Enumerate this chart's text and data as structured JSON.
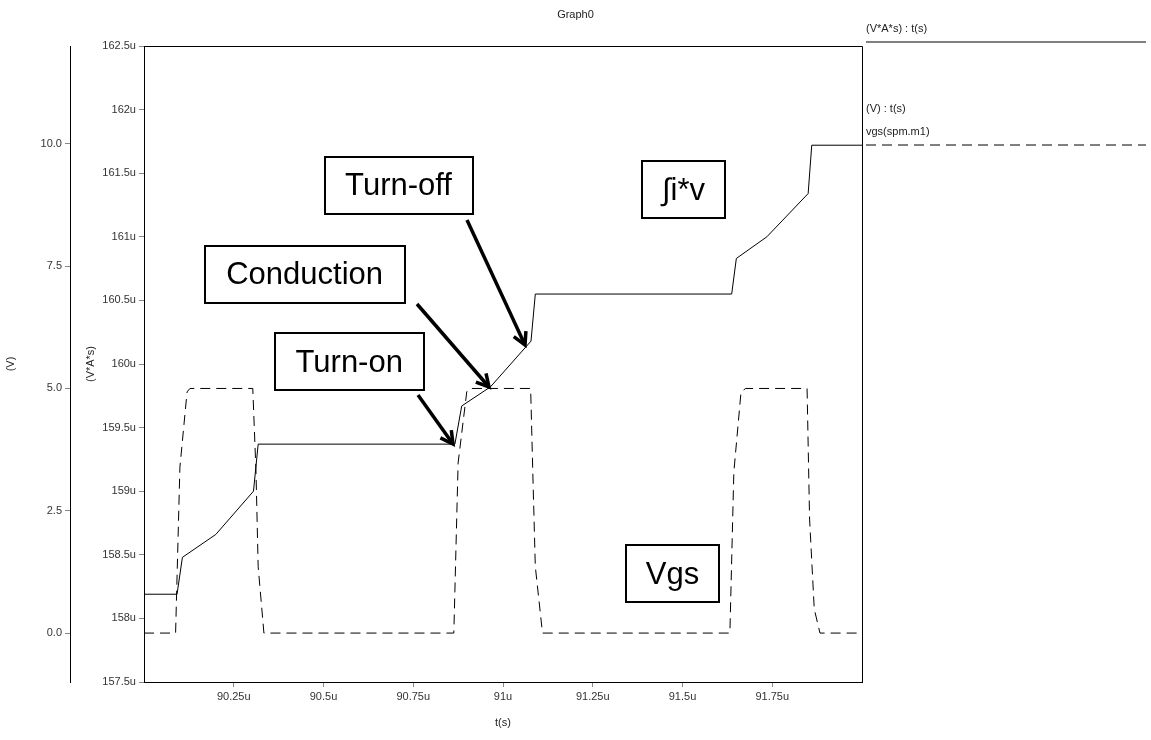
{
  "chart_data": {
    "type": "line",
    "title": "Graph0",
    "xlabel": "t(s)",
    "ylabel": "(V*A*s)",
    "y2label": "(V)",
    "xlim": [
      90.0,
      92.0
    ],
    "xticks": [
      {
        "value": 90.25,
        "label": "90.25u"
      },
      {
        "value": 90.5,
        "label": "90.5u"
      },
      {
        "value": 90.75,
        "label": "90.75u"
      },
      {
        "value": 91.0,
        "label": "91u"
      },
      {
        "value": 91.25,
        "label": "91.25u"
      },
      {
        "value": 91.5,
        "label": "91.5u"
      },
      {
        "value": 91.75,
        "label": "91.75u"
      }
    ],
    "ylim": [
      157.5,
      162.5
    ],
    "yticks": [
      {
        "value": 157.5,
        "label": "157.5u"
      },
      {
        "value": 158,
        "label": "158u"
      },
      {
        "value": 158.5,
        "label": "158.5u"
      },
      {
        "value": 159,
        "label": "159u"
      },
      {
        "value": 159.5,
        "label": "159.5u"
      },
      {
        "value": 160,
        "label": "160u"
      },
      {
        "value": 160.5,
        "label": "160.5u"
      },
      {
        "value": 161,
        "label": "161u"
      },
      {
        "value": 161.5,
        "label": "161.5u"
      },
      {
        "value": 162,
        "label": "162u"
      },
      {
        "value": 162.5,
        "label": "162.5u"
      }
    ],
    "y2lim": [
      -1,
      12
    ],
    "y2ticks": [
      {
        "value": 0,
        "label": "0.0"
      },
      {
        "value": 2.5,
        "label": "2.5"
      },
      {
        "value": 5,
        "label": "5.0"
      },
      {
        "value": 7.5,
        "label": "7.5"
      },
      {
        "value": 10,
        "label": "10.0"
      }
    ],
    "grid": false,
    "legend": "right",
    "marker": "none",
    "series": [
      {
        "name": "(V*A*s) : t(s)",
        "color": "#000000",
        "line_style": "solid",
        "x": [
          90.0,
          90.092,
          90.107,
          90.2,
          90.305,
          90.318,
          90.866,
          90.885,
          90.965,
          91.078,
          91.09,
          91.637,
          91.65,
          91.735,
          91.85,
          91.86,
          92.0
        ],
        "values": [
          158.19,
          158.19,
          158.48,
          158.66,
          159.0,
          159.37,
          159.37,
          159.67,
          159.82,
          160.18,
          160.55,
          160.55,
          160.83,
          161.0,
          161.34,
          161.72,
          161.72
        ]
      },
      {
        "name": "(V) : t(s)\nvgs(spm.m1)",
        "color": "#000000",
        "line_style": "dashed",
        "axis": "y2",
        "x": [
          90.0,
          90.088,
          90.1,
          90.12,
          90.128,
          90.303,
          90.312,
          90.318,
          90.334,
          90.863,
          90.875,
          90.899,
          90.906,
          91.077,
          91.083,
          91.09,
          91.11,
          91.632,
          91.643,
          91.663,
          91.676,
          91.847,
          91.854,
          91.867,
          91.883,
          92.0
        ],
        "values": [
          0,
          0,
          3.39,
          4.93,
          5.0,
          5.0,
          3.29,
          1.36,
          0,
          0,
          3.48,
          4.93,
          5.0,
          5.0,
          3.29,
          1.36,
          0,
          0,
          3.29,
          4.93,
          5.0,
          5.0,
          2.33,
          0.49,
          0,
          0
        ]
      }
    ],
    "annotations": [
      {
        "text": "Turn-on",
        "x": 90.86,
        "y": 159.37
      },
      {
        "text": "Conduction",
        "x": 90.96,
        "y": 159.82
      },
      {
        "text": "Turn-off",
        "x": 91.06,
        "y": 160.15
      },
      "∫i*v",
      "Vgs"
    ]
  }
}
